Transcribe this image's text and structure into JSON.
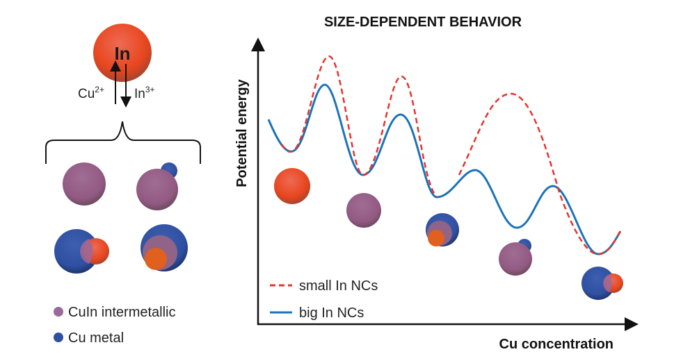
{
  "title": "SIZE-DEPENDENT BEHAVIOR",
  "top_particle_label": "In",
  "arrow_up_label": "Cu",
  "arrow_up_sup": "2+",
  "arrow_down_label": "In",
  "arrow_down_sup": "3+",
  "legend_left": [
    {
      "label": "CuIn intermetallic",
      "color": "#9b6a9a"
    },
    {
      "label": "Cu metal",
      "color": "#2f4fa0"
    }
  ],
  "chart": {
    "ylabel": "Potential energy",
    "xlabel": "Cu concentration",
    "legend": [
      {
        "label": "small In NCs",
        "color": "#e8322e",
        "style": "dashed"
      },
      {
        "label": "big In NCs",
        "color": "#1a73b8",
        "style": "solid"
      }
    ]
  },
  "colors": {
    "indium": "#e8502a",
    "cuin": "#9b6a9a",
    "cu": "#2f4fa0"
  }
}
